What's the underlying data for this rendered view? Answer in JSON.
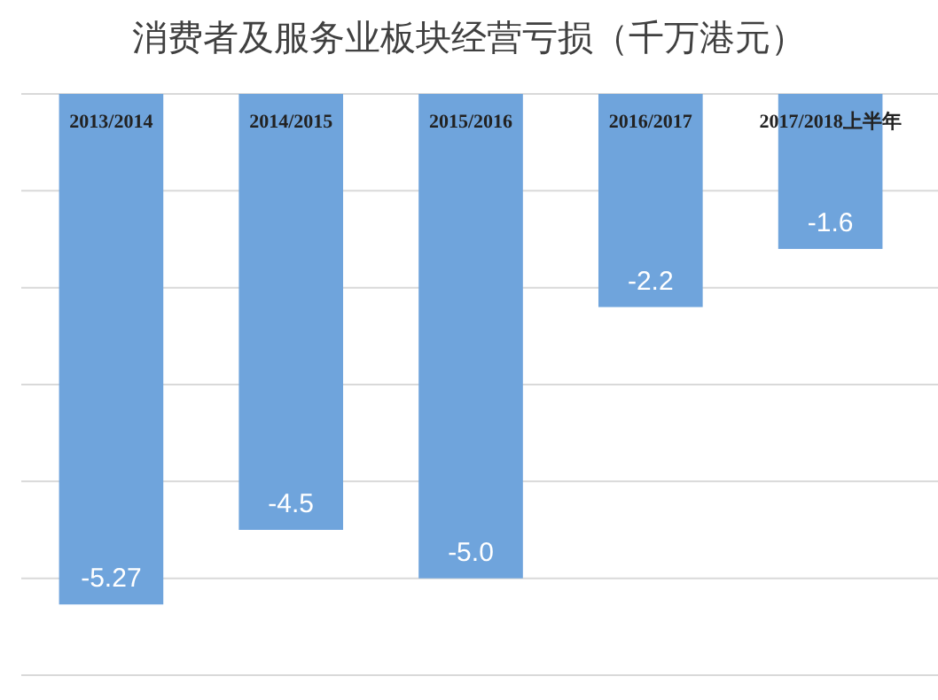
{
  "chart_data": {
    "type": "bar",
    "title": "消费者及服务业板块经营亏损（千万港元）",
    "categories": [
      "2013/2014",
      "2014/2015",
      "2015/2016",
      "2016/2017",
      "2017/2018上半年"
    ],
    "values": [
      -5.27,
      -4.5,
      -5.0,
      -2.2,
      -1.6
    ],
    "value_labels": [
      "-5.27",
      "-4.5",
      "-5.0",
      "-2.2",
      "-1.6"
    ],
    "color": "#6fa4dc",
    "ylim": [
      -6,
      0
    ],
    "yticks": [
      {
        "value": 0,
        "label": null
      },
      {
        "value": -1,
        "label": null
      },
      {
        "value": -2,
        "label": null
      },
      {
        "value": -3,
        "label": null
      },
      {
        "value": -4,
        "label": null
      },
      {
        "value": -5,
        "label": null
      },
      {
        "value": -6,
        "label": null
      }
    ],
    "grid": "y",
    "tick_labels": "x"
  }
}
